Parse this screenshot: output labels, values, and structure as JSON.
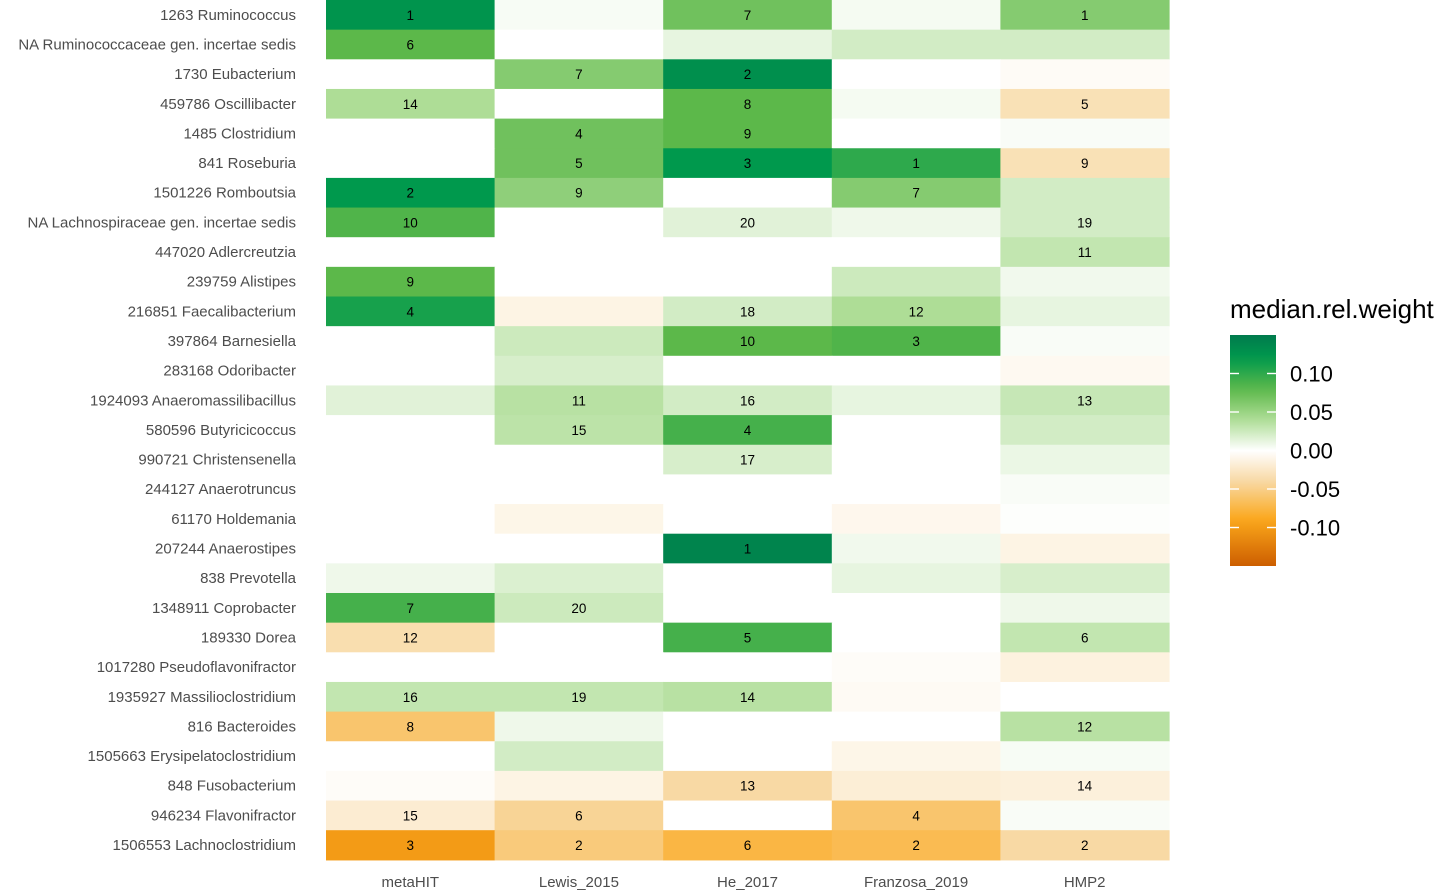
{
  "chart_data": {
    "type": "heatmap",
    "title": "",
    "xlabel": "",
    "ylabel": "",
    "columns": [
      "metaHIT",
      "Lewis_2015",
      "He_2017",
      "Franzosa_2019",
      "HMP2"
    ],
    "rows": [
      "1263 Ruminococcus",
      "NA Ruminococcaceae gen. incertae sedis",
      "1730 Eubacterium",
      "459786 Oscillibacter",
      "1485 Clostridium",
      "841 Roseburia",
      "1501226 Romboutsia",
      "NA Lachnospiraceae gen. incertae sedis",
      "447020 Adlercreutzia",
      "239759 Alistipes",
      "216851 Faecalibacterium",
      "397864 Barnesiella",
      "283168 Odoribacter",
      "1924093 Anaeromassilibacillus",
      "580596 Butyricicoccus",
      "990721 Christensenella",
      "244127 Anaerotruncus",
      "61170 Holdemania",
      "207244 Anaerostipes",
      "838 Prevotella",
      "1348911 Coprobacter",
      "189330 Dorea",
      "1017280 Pseudoflavonifractor",
      "1935927 Massilioclostridium",
      "816 Bacteroides",
      "1505663 Erysipelatoclostridium",
      "848 Fusobacterium",
      "946234 Flavonifractor",
      "1506553 Lachnoclostridium"
    ],
    "values": [
      [
        0.125,
        0.004,
        0.07,
        0.005,
        0.06
      ],
      [
        0.08,
        0.0,
        0.012,
        0.022,
        0.022
      ],
      [
        0.0,
        0.06,
        0.13,
        0.0,
        -0.004
      ],
      [
        0.04,
        0.0,
        0.08,
        0.005,
        -0.032
      ],
      [
        0.0,
        0.07,
        0.08,
        0.0,
        0.003
      ],
      [
        0.0,
        0.07,
        0.12,
        0.1,
        -0.032
      ],
      [
        0.12,
        0.055,
        0.0,
        0.06,
        0.022
      ],
      [
        0.085,
        0.0,
        0.015,
        0.008,
        0.022
      ],
      [
        0.0,
        0.0,
        0.0,
        0.0,
        0.03
      ],
      [
        0.08,
        0.0,
        0.0,
        0.025,
        0.007
      ],
      [
        0.11,
        -0.012,
        0.022,
        0.04,
        0.012
      ],
      [
        0.0,
        0.025,
        0.08,
        0.085,
        0.003
      ],
      [
        0.0,
        0.02,
        0.0,
        0.0,
        -0.006
      ],
      [
        0.015,
        0.035,
        0.022,
        0.012,
        0.028
      ],
      [
        0.0,
        0.033,
        0.09,
        0.0,
        0.022
      ],
      [
        0.0,
        0.0,
        0.02,
        0.0,
        0.01
      ],
      [
        0.0,
        0.0,
        0.0,
        0.0,
        0.003
      ],
      [
        0.0,
        -0.01,
        0.0,
        -0.008,
        0.001
      ],
      [
        0.0,
        0.0,
        0.14,
        0.007,
        -0.012
      ],
      [
        0.008,
        0.018,
        0.0,
        0.012,
        0.02
      ],
      [
        0.09,
        0.025,
        0.0,
        0.0,
        0.008
      ],
      [
        -0.035,
        0.0,
        0.09,
        0.0,
        0.03
      ],
      [
        0.0,
        0.0,
        0.0,
        -0.003,
        -0.014
      ],
      [
        0.03,
        0.03,
        0.035,
        -0.005,
        0.0
      ],
      [
        -0.06,
        0.008,
        0.0,
        0.0,
        0.035
      ],
      [
        0.0,
        0.022,
        0.0,
        -0.01,
        0.004
      ],
      [
        -0.003,
        -0.012,
        -0.04,
        -0.018,
        -0.016
      ],
      [
        -0.02,
        -0.045,
        0.0,
        -0.06,
        0.003
      ],
      [
        -0.1,
        -0.055,
        -0.075,
        -0.07,
        -0.04
      ]
    ],
    "ranks": [
      [
        "1",
        "",
        "7",
        "",
        "1"
      ],
      [
        "6",
        "",
        "",
        "",
        ""
      ],
      [
        "",
        "7",
        "2",
        "",
        ""
      ],
      [
        "14",
        "",
        "8",
        "",
        "5"
      ],
      [
        "",
        "4",
        "9",
        "",
        ""
      ],
      [
        "",
        "5",
        "3",
        "1",
        "9"
      ],
      [
        "2",
        "9",
        "",
        "7",
        ""
      ],
      [
        "10",
        "",
        "20",
        "",
        "19"
      ],
      [
        "",
        "",
        "",
        "",
        "11"
      ],
      [
        "9",
        "",
        "",
        "",
        ""
      ],
      [
        "4",
        "",
        "18",
        "12",
        ""
      ],
      [
        "",
        "",
        "10",
        "3",
        ""
      ],
      [
        "",
        "",
        "",
        "",
        ""
      ],
      [
        "",
        "11",
        "16",
        "",
        "13"
      ],
      [
        "",
        "15",
        "4",
        "",
        ""
      ],
      [
        "",
        "",
        "17",
        "",
        ""
      ],
      [
        "",
        "",
        "",
        "",
        ""
      ],
      [
        "",
        "",
        "",
        "",
        ""
      ],
      [
        "",
        "",
        "1",
        "",
        ""
      ],
      [
        "",
        "",
        "",
        "",
        ""
      ],
      [
        "7",
        "20",
        "",
        "",
        ""
      ],
      [
        "12",
        "",
        "5",
        "",
        "6"
      ],
      [
        "",
        "",
        "",
        "",
        ""
      ],
      [
        "16",
        "19",
        "14",
        "",
        ""
      ],
      [
        "8",
        "",
        "",
        "",
        "12"
      ],
      [
        "",
        "",
        "",
        "",
        ""
      ],
      [
        "",
        "",
        "13",
        "",
        "14"
      ],
      [
        "15",
        "6",
        "",
        "4",
        ""
      ],
      [
        "3",
        "2",
        "6",
        "2",
        "2"
      ]
    ],
    "color_scale": {
      "range": [
        -0.15,
        0.15
      ],
      "stops": [
        {
          "v": 0.15,
          "c": "#007a4d"
        },
        {
          "v": 0.12,
          "c": "#00994d"
        },
        {
          "v": 0.08,
          "c": "#5cb84a"
        },
        {
          "v": 0.04,
          "c": "#aedd96"
        },
        {
          "v": 0.0,
          "c": "#ffffff"
        },
        {
          "v": -0.04,
          "c": "#f8d9a4"
        },
        {
          "v": -0.09,
          "c": "#fba71b"
        },
        {
          "v": -0.15,
          "c": "#cc5e00"
        }
      ]
    },
    "legend": {
      "title": "median.rel.weight",
      "ticks": [
        0.1,
        0.05,
        0.0,
        -0.05,
        -0.1
      ],
      "tick_labels": [
        "0.10",
        "0.05",
        "0.00",
        "-0.05",
        "-0.10"
      ],
      "position": "right"
    }
  }
}
